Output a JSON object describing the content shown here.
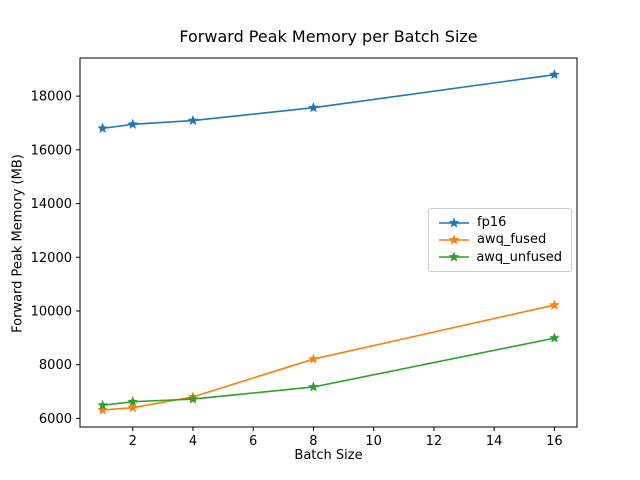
{
  "chart_data": {
    "type": "line",
    "title": "Forward Peak Memory per Batch Size",
    "xlabel": "Batch Size",
    "ylabel": "Forward Peak Memory (MB)",
    "x": [
      1,
      2,
      4,
      8,
      16
    ],
    "series": [
      {
        "name": "fp16",
        "color": "#1f77b4",
        "marker": "star",
        "values": [
          16800,
          16950,
          17090,
          17570,
          18800
        ]
      },
      {
        "name": "awq_fused",
        "color": "#ff7f0e",
        "marker": "star",
        "values": [
          6310,
          6400,
          6800,
          8210,
          10220
        ]
      },
      {
        "name": "awq_unfused",
        "color": "#2ca02c",
        "marker": "star",
        "values": [
          6490,
          6620,
          6720,
          7170,
          8990
        ]
      }
    ],
    "xticks": [
      2,
      4,
      6,
      8,
      10,
      12,
      14,
      16
    ],
    "yticks": [
      6000,
      8000,
      10000,
      12000,
      14000,
      16000,
      18000
    ],
    "xlim": [
      0.25,
      16.75
    ],
    "ylim": [
      5680,
      19420
    ],
    "grid": false,
    "legend_position": "center right",
    "axis_color": "#000000",
    "background_color": "#ffffff"
  }
}
